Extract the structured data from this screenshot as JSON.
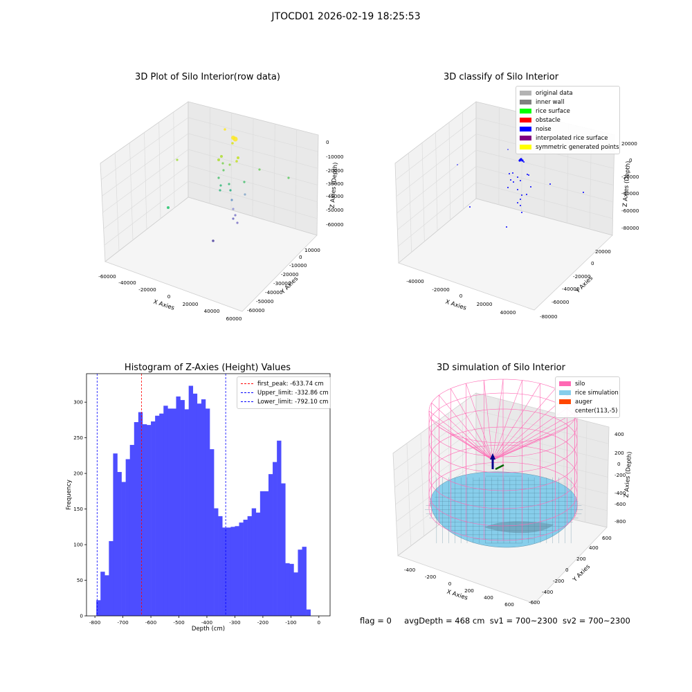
{
  "suptitle": "JTOCD01 2026-02-19 18:25:53",
  "footer": {
    "flag": "flag = 0",
    "avg": "avgDepth = 468 cm",
    "sv1": "sv1 = 700~2300",
    "sv2": "sv2 = 700~2300"
  },
  "chart_data": [
    {
      "type": "scatter",
      "title": "3D Plot of Silo Interior(row data)",
      "xlabel": "X Axies",
      "ylabel": "Y Axies",
      "zlabel": "Z Axies (Depth)",
      "xticks": [
        "-60000",
        "-40000",
        "-20000",
        "0",
        "20000",
        "40000",
        "60000"
      ],
      "yticks": [
        "-60000",
        "-50000",
        "-40000",
        "-30000",
        "-20000",
        "-10000",
        "0",
        "10000"
      ],
      "zticks": [
        "-60000",
        "-50000",
        "-40000",
        "-30000",
        "-20000",
        "-10000",
        "0"
      ],
      "xlim": [
        -60000,
        60000
      ],
      "ylim": [
        -60000,
        10000
      ],
      "zlim": [
        -60000,
        0
      ],
      "colormap": "viridis"
    },
    {
      "type": "scatter",
      "title": "3D classify of Silo Interior",
      "xlabel": "X Axies",
      "ylabel": "Y Axies",
      "zlabel": "Z Axies (Depth)",
      "xticks": [
        "-40000",
        "-20000",
        "0",
        "20000",
        "40000"
      ],
      "yticks": [
        "-80000",
        "-60000",
        "-40000",
        "-20000",
        "0",
        "20000"
      ],
      "zticks": [
        "-80000",
        "-60000",
        "-40000",
        "-20000",
        "0",
        "20000"
      ],
      "legend": [
        {
          "label": "original data",
          "color": "#b3b3b3"
        },
        {
          "label": "inner wall",
          "color": "#808080"
        },
        {
          "label": "rice surface",
          "color": "#00ff00"
        },
        {
          "label": "obstacle",
          "color": "#ff0000"
        },
        {
          "label": "noise",
          "color": "#0000ff"
        },
        {
          "label": "interpolated rice surface",
          "color": "#800080"
        },
        {
          "label": "symmetric generated points",
          "color": "#ffff00"
        }
      ],
      "legend_position": "top-right"
    },
    {
      "type": "bar",
      "title": "Histogram of Z-Axies (Height) Values",
      "xlabel": "Depth (cm)",
      "ylabel": "Frequency",
      "xlim": [
        -830,
        40
      ],
      "ylim": [
        0,
        340
      ],
      "xticks": [
        -800,
        -700,
        -600,
        -500,
        -400,
        -300,
        -200,
        -100,
        0
      ],
      "yticks": [
        0,
        50,
        100,
        150,
        200,
        250,
        300
      ],
      "bin_start": -795,
      "bin_width": 15,
      "values": [
        22,
        62,
        57,
        105,
        228,
        202,
        188,
        220,
        240,
        272,
        286,
        269,
        268,
        273,
        281,
        284,
        295,
        291,
        291,
        308,
        303,
        290,
        323,
        312,
        298,
        304,
        291,
        234,
        151,
        140,
        124,
        124,
        125,
        126,
        131,
        135,
        140,
        151,
        145,
        175,
        175,
        199,
        216,
        246,
        186,
        74,
        73,
        61,
        93,
        97,
        9
      ],
      "bar_color": "#4d4dff",
      "lines": [
        {
          "label": "first_peak: -633.74 cm",
          "value": -633.74,
          "color": "#ff0000"
        },
        {
          "label": "Upper_limit: -332.86 cm",
          "value": -332.86,
          "color": "#0000ff"
        },
        {
          "label": "Lower_limit: -792.10 cm",
          "value": -792.1,
          "color": "#0000ff"
        }
      ]
    },
    {
      "type": "surface",
      "title": "3D simulation of Silo Interior",
      "xlabel": "X Axies",
      "ylabel": "Y Axies",
      "zlabel": "Z Axies (Depth)",
      "xticks": [
        "-400",
        "-200",
        "0",
        "200",
        "400",
        "600"
      ],
      "yticks": [
        "-600",
        "-400",
        "-200",
        "0",
        "200",
        "400",
        "600"
      ],
      "zticks": [
        "-800",
        "-600",
        "-400",
        "-200",
        "0",
        "200",
        "400"
      ],
      "legend": [
        {
          "label": "silo",
          "color": "#ff69b4"
        },
        {
          "label": "rice simulation",
          "color": "#87ceeb"
        },
        {
          "label": "auger",
          "color": "#ff4500"
        },
        {
          "label": "center(113,-5)",
          "color": ""
        }
      ],
      "legend_position": "top-right"
    }
  ]
}
